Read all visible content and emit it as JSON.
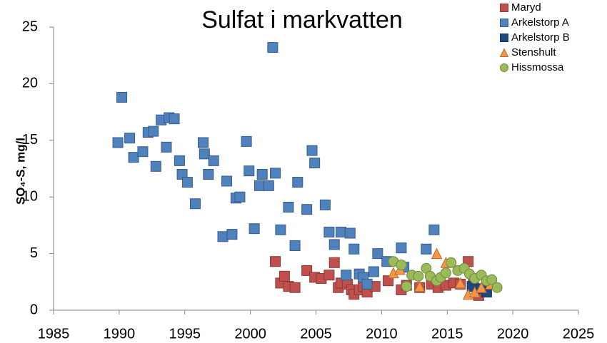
{
  "chart_data": {
    "type": "scatter",
    "title": "Sulfat i markvatten",
    "ylabel": "SO₄-S, mg/l",
    "xlim": [
      1985,
      2025
    ],
    "xticks": [
      1985,
      1990,
      1995,
      2000,
      2005,
      2010,
      2015,
      2020,
      2025
    ],
    "ylim": [
      0,
      25
    ],
    "yticks": [
      0,
      5,
      10,
      15,
      20,
      25
    ],
    "grid": false,
    "legend": "upper right",
    "series": [
      {
        "name": "Maryd",
        "color": "#c0504d",
        "edgecolor": "#8c3836",
        "marker": "square",
        "x": [
          2001.9,
          2002.3,
          2002.6,
          2002.9,
          2003.4,
          2004.3,
          2004.9,
          2005.4,
          2006.0,
          2006.4,
          2006.7,
          2006.9,
          2007.4,
          2007.7,
          2007.9,
          2008.3,
          2008.6,
          2008.9,
          2009.5,
          2010.5,
          2011.5,
          2011.9,
          2012.9,
          2013.8,
          2014.3,
          2014.9,
          2015.5,
          2016.0,
          2016.6,
          2017.0,
          2017.4,
          2017.8
        ],
        "values": [
          4.3,
          2.4,
          3.0,
          2.1,
          2.0,
          3.5,
          2.9,
          2.8,
          3.1,
          4.2,
          2.0,
          2.4,
          2.3,
          1.8,
          1.4,
          1.8,
          2.1,
          1.6,
          2.1,
          2.6,
          1.8,
          2.2,
          2.0,
          2.3,
          2.0,
          2.2,
          2.4,
          2.3,
          4.3,
          2.4,
          1.3,
          1.6
        ]
      },
      {
        "name": "Arkelstorp A",
        "color": "#4f81bd",
        "edgecolor": "#385d8a",
        "marker": "square",
        "x": [
          1989.9,
          1990.2,
          1990.8,
          1991.1,
          1991.8,
          1992.2,
          1992.6,
          1992.8,
          1993.2,
          1993.6,
          1993.8,
          1994.2,
          1994.6,
          1994.8,
          1995.2,
          1995.8,
          1996.4,
          1996.5,
          1996.8,
          1997.2,
          1997.9,
          1998.2,
          1998.6,
          1998.9,
          1999.2,
          1999.7,
          1999.9,
          2000.3,
          2000.7,
          2000.9,
          2001.4,
          2001.7,
          2001.9,
          2002.3,
          2002.9,
          2003.4,
          2003.6,
          2004.3,
          2004.7,
          2004.9,
          2005.7,
          2006.0,
          2006.4,
          2006.9,
          2007.3,
          2007.6,
          2007.9,
          2008.3,
          2008.6,
          2008.9,
          2009.4,
          2009.7,
          2010.4,
          2011.5,
          2011.7,
          2013.4,
          2014.0
        ],
        "values": [
          14.8,
          18.8,
          15.2,
          13.5,
          14.0,
          15.7,
          15.8,
          12.7,
          16.8,
          14.4,
          17.0,
          16.9,
          13.2,
          12.0,
          11.3,
          9.4,
          14.8,
          13.8,
          12.0,
          13.2,
          6.5,
          11.4,
          6.7,
          9.9,
          10.0,
          14.9,
          12.3,
          7.2,
          11.0,
          12.0,
          11.0,
          23.2,
          12.1,
          7.1,
          9.1,
          5.7,
          11.3,
          8.9,
          14.1,
          13.0,
          9.3,
          6.9,
          5.8,
          6.9,
          3.1,
          6.8,
          5.4,
          3.2,
          2.9,
          2.3,
          3.4,
          5.0,
          4.3,
          5.5,
          3.8,
          5.4,
          7.1
        ]
      },
      {
        "name": "Arkelstorp B",
        "color": "#1f497d",
        "edgecolor": "#17375e",
        "marker": "square",
        "x": [
          2016.9,
          2017.6,
          2018.0
        ],
        "values": [
          2.1,
          1.9,
          1.6
        ]
      },
      {
        "name": "Stenshult",
        "color": "#f79646",
        "edgecolor": "#b66d31",
        "marker": "triangle",
        "x": [
          2010.9,
          2011.4,
          2012.9,
          2014.2,
          2014.9,
          2016.0,
          2016.6,
          2017.1,
          2017.6,
          2018.3
        ],
        "values": [
          3.3,
          3.6,
          2.1,
          5.0,
          4.2,
          2.4,
          1.4,
          1.6,
          2.0,
          2.3
        ]
      },
      {
        "name": "Hissmossa",
        "color": "#9bbb59",
        "edgecolor": "#71893f",
        "marker": "circle",
        "x": [
          2010.9,
          2011.5,
          2011.9,
          2012.3,
          2012.8,
          2013.4,
          2013.7,
          2014.2,
          2014.5,
          2014.9,
          2015.3,
          2015.8,
          2016.3,
          2016.7,
          2017.1,
          2017.6,
          2018.0,
          2018.4,
          2018.8
        ],
        "values": [
          4.3,
          4.0,
          2.1,
          3.1,
          3.0,
          3.7,
          3.0,
          2.6,
          2.9,
          3.3,
          4.2,
          3.5,
          3.7,
          3.2,
          2.8,
          3.1,
          2.6,
          2.7,
          2.0
        ]
      }
    ]
  }
}
